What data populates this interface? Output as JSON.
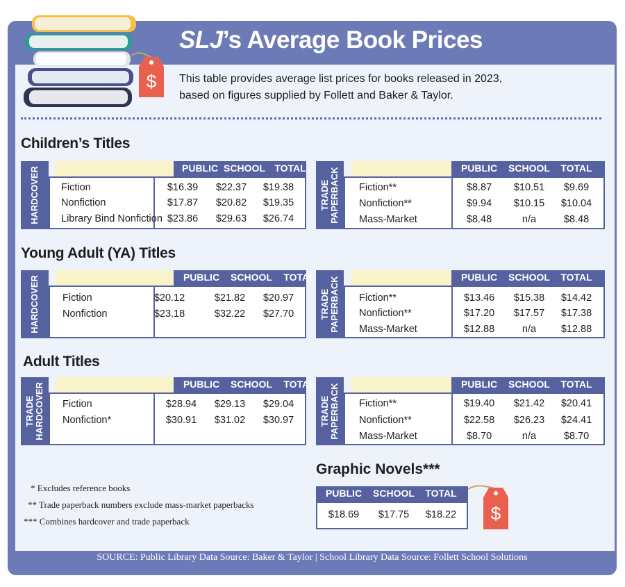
{
  "header": {
    "title_em": "SLJ",
    "title_rest": "’s Average Book Prices",
    "subtitle_line1": "This table provides average list prices for books released in 2023,",
    "subtitle_line2": "based on figures supplied by Follett and Baker & Taylor."
  },
  "columns": {
    "public": "PUBLIC",
    "school": "SCHOOL",
    "total": "TOTAL"
  },
  "children": {
    "heading": "Children’s Titles",
    "hardcover": {
      "side": "HARDCOVER",
      "rows": [
        {
          "label": "Fiction",
          "public": "$16.39",
          "school": "$22.37",
          "total": "$19.38"
        },
        {
          "label": "Nonfiction",
          "public": "$17.87",
          "school": "$20.82",
          "total": "$19.35"
        },
        {
          "label": "Library Bind Nonfiction",
          "public": "$23.86",
          "school": "$29.63",
          "total": "$26.74"
        }
      ]
    },
    "paperback": {
      "side1": "TRADE",
      "side2": "PAPERBACK",
      "rows": [
        {
          "label": "Fiction**",
          "public": "$8.87",
          "school": "$10.51",
          "total": "$9.69"
        },
        {
          "label": "Nonfiction**",
          "public": "$9.94",
          "school": "$10.15",
          "total": "$10.04"
        },
        {
          "label": "Mass-Market",
          "public": "$8.48",
          "school": "n/a",
          "total": "$8.48"
        }
      ]
    }
  },
  "ya": {
    "heading": "Young Adult (YA) Titles",
    "hardcover": {
      "side": "HARDCOVER",
      "rows": [
        {
          "label": "Fiction",
          "public": "$20.12",
          "school": "$21.82",
          "total": "$20.97"
        },
        {
          "label": "Nonfiction",
          "public": "$23.18",
          "school": "$32.22",
          "total": "$27.70"
        }
      ]
    },
    "paperback": {
      "side1": "TRADE",
      "side2": "PAPERBACK",
      "rows": [
        {
          "label": "Fiction**",
          "public": "$13.46",
          "school": "$15.38",
          "total": "$14.42"
        },
        {
          "label": "Nonfiction**",
          "public": "$17.20",
          "school": "$17.57",
          "total": "$17.38"
        },
        {
          "label": "Mass-Market",
          "public": "$12.88",
          "school": "n/a",
          "total": "$12.88"
        }
      ]
    }
  },
  "adult": {
    "heading": "Adult Titles",
    "hardcover": {
      "side1": "TRADE",
      "side2": "HARDCOVER",
      "rows": [
        {
          "label": "Fiction",
          "public": "$28.94",
          "school": "$29.13",
          "total": "$29.04"
        },
        {
          "label": "Nonfiction*",
          "public": "$30.91",
          "school": "$31.02",
          "total": "$30.97"
        }
      ]
    },
    "paperback": {
      "side1": "TRADE",
      "side2": "PAPERBACK",
      "rows": [
        {
          "label": "Fiction**",
          "public": "$19.40",
          "school": "$21.42",
          "total": "$20.41"
        },
        {
          "label": "Nonfiction**",
          "public": "$22.58",
          "school": "$26.23",
          "total": "$24.41"
        },
        {
          "label": "Mass-Market",
          "public": "$8.70",
          "school": "n/a",
          "total": "$8.70"
        }
      ]
    }
  },
  "graphic_novels": {
    "heading": "Graphic Novels***",
    "public": "$18.69",
    "school": "$17.75",
    "total": "$18.22"
  },
  "notes": [
    "*  Excludes reference books",
    "**  Trade paperback numbers exclude mass-market paperbacks",
    "***  Combines hardcover and trade paperback"
  ],
  "footer": "SOURCE:  Public Library Data Source: Baker & Taylor | School Library Data Source: Follett School Solutions",
  "price_tag_symbol": "$",
  "colors": {
    "frame": "#6c7bb7",
    "header_band": "#56629f",
    "panel": "#eef2fa",
    "highlight": "#f8f3c8",
    "tag": "#e9604e"
  }
}
